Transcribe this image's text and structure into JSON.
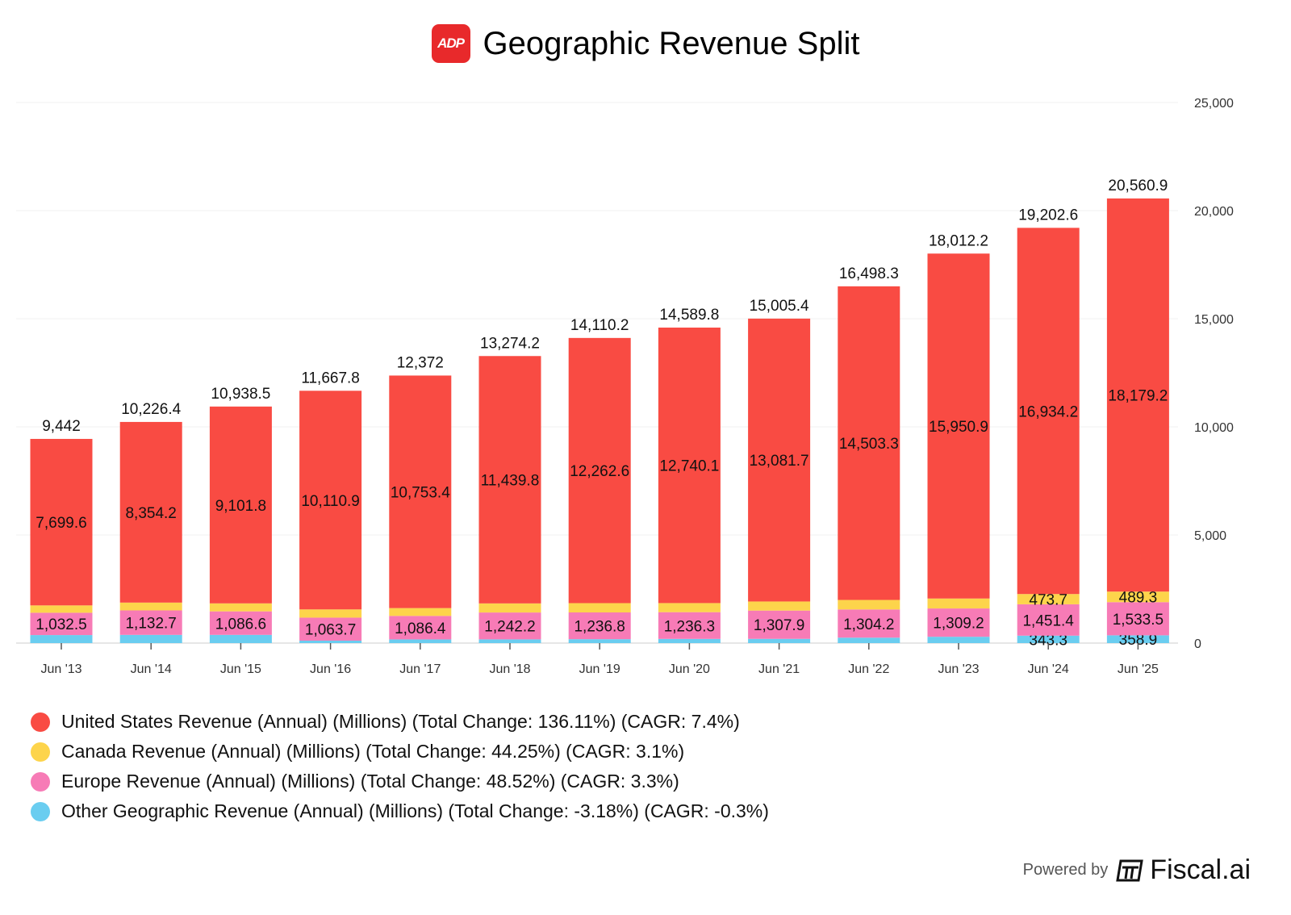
{
  "header": {
    "title": "Geographic Revenue Split",
    "logo_text": "ADP"
  },
  "footer": {
    "powered_by": "Powered by",
    "brand": "Fiscal.ai"
  },
  "chart_data": {
    "type": "bar",
    "stacked": true,
    "title": "Geographic Revenue Split",
    "categories": [
      "Jun '13",
      "Jun '14",
      "Jun '15",
      "Jun '16",
      "Jun '17",
      "Jun '18",
      "Jun '19",
      "Jun '20",
      "Jun '21",
      "Jun '22",
      "Jun '23",
      "Jun '24",
      "Jun '25"
    ],
    "ylim": [
      0,
      25000
    ],
    "yticks": [
      0,
      5000,
      10000,
      15000,
      20000,
      25000
    ],
    "ytick_labels": [
      "0",
      "5,000",
      "10,000",
      "15,000",
      "20,000",
      "25,000"
    ],
    "y_axis_side": "right",
    "grid": true,
    "totals": [
      9442,
      10226.4,
      10938.5,
      11667.8,
      12372,
      13274.2,
      14110.2,
      14589.8,
      15005.4,
      16498.3,
      18012.2,
      19202.6,
      20560.9
    ],
    "total_labels": [
      "9,442",
      "10,226.4",
      "10,938.5",
      "11,667.8",
      "12,372",
      "13,274.2",
      "14,110.2",
      "14,589.8",
      "15,005.4",
      "16,498.3",
      "18,012.2",
      "19,202.6",
      "20,560.9"
    ],
    "series": [
      {
        "name": "Other Geographic Revenue (Annual) (Millions) (Total Change: -3.18%) (CAGR: -0.3%)",
        "color": "#6acdf0",
        "values": [
          370.7,
          379.5,
          380.1,
          113.2,
          170.2,
          172.2,
          180.8,
          193.4,
          195.8,
          250.8,
          292.1,
          343.3,
          358.9
        ],
        "labels": [
          null,
          null,
          null,
          null,
          null,
          null,
          null,
          null,
          null,
          null,
          null,
          "343.3",
          "358.9"
        ]
      },
      {
        "name": "Europe Revenue (Annual) (Millions) (Total Change: 48.52%) (CAGR: 3.3%)",
        "color": "#f77bb6",
        "values": [
          1032.5,
          1132.7,
          1086.6,
          1063.7,
          1086.4,
          1242.2,
          1236.8,
          1236.3,
          1307.9,
          1304.2,
          1309.2,
          1451.4,
          1533.5
        ],
        "labels": [
          "1,032.5",
          "1,132.7",
          "1,086.6",
          "1,063.7",
          "1,086.4",
          "1,242.2",
          "1,236.8",
          "1,236.3",
          "1,307.9",
          "1,304.2",
          "1,309.2",
          "1,451.4",
          "1,533.5"
        ]
      },
      {
        "name": "Canada Revenue (Annual) (Millions) (Total Change: 44.25%) (CAGR: 3.1%)",
        "color": "#fdd44b",
        "values": [
          339.2,
          360,
          370,
          380,
          362,
          420,
          430,
          420,
          420,
          440,
          460,
          473.7,
          489.3
        ],
        "labels": [
          null,
          null,
          null,
          null,
          null,
          null,
          null,
          null,
          null,
          null,
          null,
          "473.7",
          "489.3"
        ]
      },
      {
        "name": "United States Revenue (Annual) (Millions) (Total Change: 136.11%) (CAGR: 7.4%)",
        "color": "#f94b43",
        "values": [
          7699.6,
          8354.2,
          9101.8,
          10110.9,
          10753.4,
          11439.8,
          12262.6,
          12740.1,
          13081.7,
          14503.3,
          15950.9,
          16934.2,
          18179.2
        ],
        "labels": [
          "7,699.6",
          "8,354.2",
          "9,101.8",
          "10,110.9",
          "10,753.4",
          "11,439.8",
          "12,262.6",
          "12,740.1",
          "13,081.7",
          "14,503.3",
          "15,950.9",
          "16,934.2",
          "18,179.2"
        ]
      }
    ],
    "legend_order": [
      3,
      2,
      1,
      0
    ],
    "legend_position": "bottom-left"
  }
}
